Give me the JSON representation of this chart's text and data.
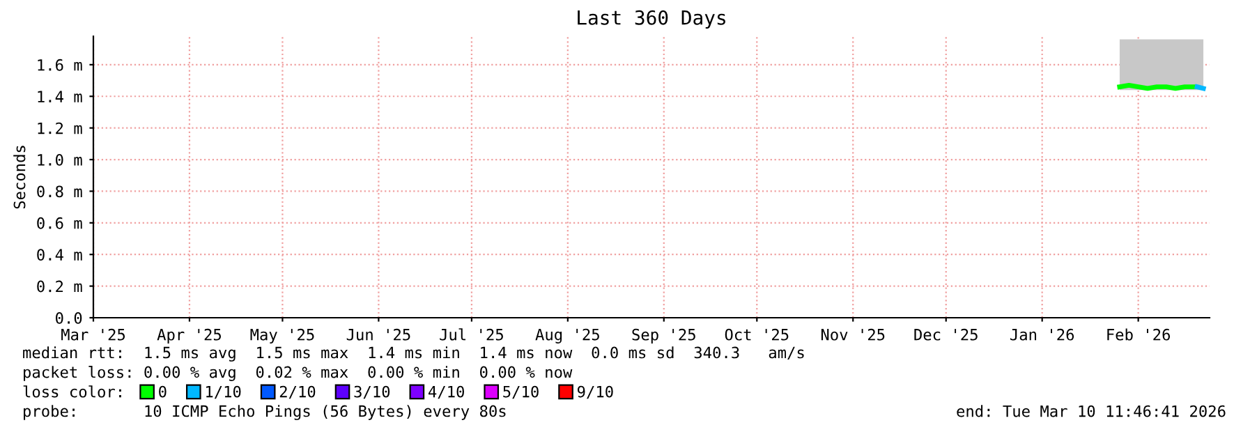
{
  "chart_data": {
    "type": "line",
    "title": "Last 360 Days",
    "ylabel": "Seconds",
    "legend_title": "loss color:",
    "x": [
      "2026-02-09",
      "2026-02-12",
      "2026-02-15",
      "2026-02-18",
      "2026-02-21",
      "2026-02-24",
      "2026-02-27",
      "2026-03-02",
      "2026-03-05",
      "2026-03-08"
    ],
    "series": [
      {
        "name": "0",
        "color": "#00ff00",
        "values": [
          1.46,
          1.47,
          1.46,
          1.45,
          1.46,
          1.46,
          1.45,
          1.46,
          1.46,
          null
        ],
        "lower": [
          1.44,
          1.44,
          1.44,
          1.44,
          1.44,
          1.44,
          1.44,
          1.44,
          1.44,
          1.44
        ],
        "upper": [
          1.76,
          1.76,
          1.76,
          1.76,
          1.76,
          1.76,
          1.76,
          1.76,
          1.76,
          1.76
        ]
      },
      {
        "name": "1/10",
        "color": "#00b8ff",
        "x": [
          "2026-03-06",
          "2026-03-08"
        ],
        "values": [
          1.46,
          1.45
        ]
      },
      {
        "name": "2/10",
        "color": "#0059ff",
        "values": [
          null,
          null,
          null,
          null,
          null,
          null,
          null,
          null,
          null,
          null
        ]
      },
      {
        "name": "3/10",
        "color": "#5e00ff",
        "values": [
          null,
          null,
          null,
          null,
          null,
          null,
          null,
          null,
          null,
          null
        ]
      },
      {
        "name": "4/10",
        "color": "#7e00ff",
        "values": [
          null,
          null,
          null,
          null,
          null,
          null,
          null,
          null,
          null,
          null
        ]
      },
      {
        "name": "5/10",
        "color": "#dd00ff",
        "values": [
          null,
          null,
          null,
          null,
          null,
          null,
          null,
          null,
          null,
          null
        ]
      },
      {
        "name": "9/10",
        "color": "#ff0000",
        "values": [
          null,
          null,
          null,
          null,
          null,
          null,
          null,
          null,
          null,
          null
        ]
      }
    ],
    "xlim": [
      "2025-03-15",
      "2026-03-10"
    ],
    "xticks": [
      {
        "value": "2025-03-15",
        "label": "Mar '25"
      },
      {
        "value": "2025-04-15",
        "label": "Apr '25"
      },
      {
        "value": "2025-05-15",
        "label": "May '25"
      },
      {
        "value": "2025-06-15",
        "label": "Jun '25"
      },
      {
        "value": "2025-07-15",
        "label": "Jul '25"
      },
      {
        "value": "2025-08-15",
        "label": "Aug '25"
      },
      {
        "value": "2025-09-15",
        "label": "Sep '25"
      },
      {
        "value": "2025-10-15",
        "label": "Oct '25"
      },
      {
        "value": "2025-11-15",
        "label": "Nov '25"
      },
      {
        "value": "2025-12-15",
        "label": "Dec '25"
      },
      {
        "value": "2026-01-15",
        "label": "Jan '26"
      },
      {
        "value": "2026-02-15",
        "label": "Feb '26"
      }
    ],
    "ylim": [
      0,
      1.78
    ],
    "yticks": [
      {
        "value": 0,
        "label": "0.0"
      },
      {
        "value": 0.2,
        "label": "0.2 m"
      },
      {
        "value": 0.4,
        "label": "0.4 m"
      },
      {
        "value": 0.6,
        "label": "0.6 m"
      },
      {
        "value": 0.8,
        "label": "0.8 m"
      },
      {
        "value": 1.0,
        "label": "1.0 m"
      },
      {
        "value": 1.2,
        "label": "1.2 m"
      },
      {
        "value": 1.4,
        "label": "1.4 m"
      },
      {
        "value": 1.6,
        "label": "1.6 m"
      }
    ],
    "grid": true,
    "legend": "bottom",
    "marker": "none",
    "line_style": "solid",
    "annotations": [
      "median rtt:  1.5 ms avg  1.5 ms max  1.4 ms min  1.4 ms now  0.0 ms sd  340.3   am/s",
      "packet loss: 0.00 % avg  0.02 % max  0.00 % min  0.00 % now",
      "probe:       10 ICMP Echo Pings (56 Bytes) every 80s",
      "end: Tue Mar 10 11:46:41 2026"
    ]
  }
}
